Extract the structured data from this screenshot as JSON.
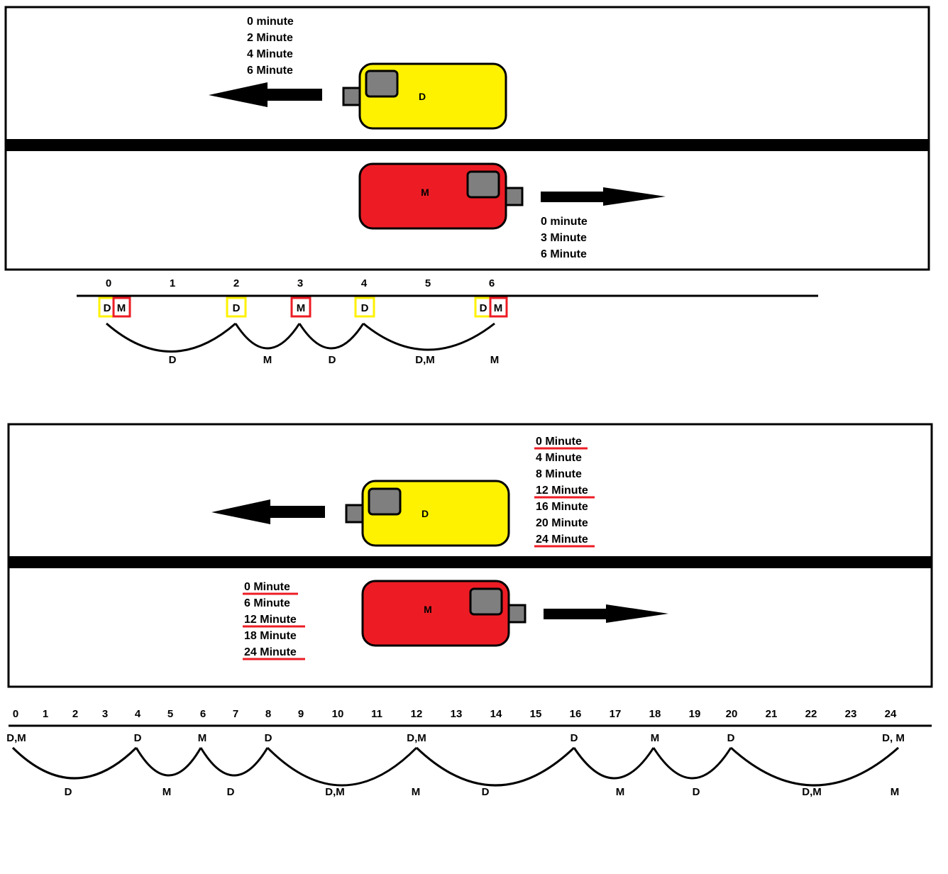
{
  "scene1": {
    "car_d_label": "D",
    "car_m_label": "M",
    "d_times": [
      "0 minute",
      "2 Minute",
      "4 Minute",
      "6 Minute"
    ],
    "m_times": [
      "0 minute",
      "3 Minute",
      "6 Minute"
    ]
  },
  "timeline1": {
    "ticks": [
      "0",
      "1",
      "2",
      "3",
      "4",
      "5",
      "6"
    ],
    "markers": [
      {
        "text": "D",
        "color": "yellow"
      },
      {
        "text": "M",
        "color": "red"
      },
      {
        "text": "D",
        "color": "yellow"
      },
      {
        "text": "M",
        "color": "red"
      },
      {
        "text": "D",
        "color": "yellow"
      },
      {
        "text": "D",
        "color": "yellow"
      },
      {
        "text": "M",
        "color": "red"
      }
    ],
    "arc_labels": [
      "D",
      "M",
      "D",
      "D,M",
      "M"
    ]
  },
  "scene2": {
    "car_d_label": "D",
    "car_m_label": "M",
    "d_times": [
      "0 Minute",
      "4 Minute",
      "8 Minute",
      "12 Minute",
      "16 Minute",
      "20 Minute",
      "24 Minute"
    ],
    "d_underlined": [
      true,
      false,
      false,
      true,
      false,
      false,
      true
    ],
    "m_times": [
      "0 Minute",
      "6 Minute",
      "12 Minute",
      "18 Minute",
      "24 Minute"
    ],
    "m_underlined": [
      true,
      false,
      true,
      false,
      true
    ]
  },
  "timeline2": {
    "ticks": [
      "0",
      "1",
      "2",
      "3",
      "4",
      "5",
      "6",
      "7",
      "8",
      "9",
      "10",
      "11",
      "12",
      "13",
      "14",
      "15",
      "16",
      "17",
      "18",
      "19",
      "20",
      "21",
      "22",
      "23",
      "24"
    ],
    "event_labels": [
      "D,M",
      "D",
      "M",
      "D",
      "D,M",
      "D",
      "M",
      "D",
      "D, M"
    ],
    "arc_labels": [
      "D",
      "M",
      "D",
      "D,M",
      "M",
      "D",
      "M",
      "D",
      "D,M",
      "M"
    ]
  },
  "colors": {
    "yellow": "#FFF200",
    "red": "#ED1C24",
    "gray": "#7F7F7F",
    "black": "#000000"
  }
}
